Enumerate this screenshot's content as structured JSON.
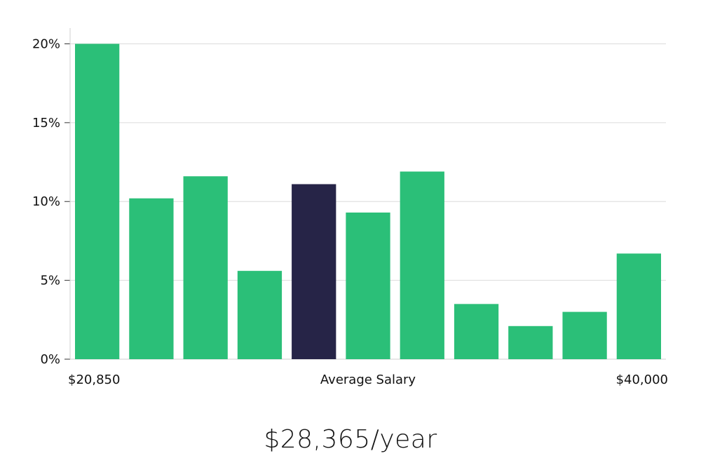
{
  "chart_data": {
    "type": "bar",
    "title": "",
    "xlabel": "Average Salary",
    "ylabel": "",
    "ylim": [
      0,
      21
    ],
    "y_ticks": [
      0,
      5,
      10,
      15,
      20
    ],
    "y_tick_labels": [
      "0%",
      "5%",
      "10%",
      "15%",
      "20%"
    ],
    "x_tick_labels": {
      "left": "$20,850",
      "center": "Average Salary",
      "right": "$40,000"
    },
    "values": [
      20.0,
      10.2,
      11.6,
      5.6,
      11.1,
      9.3,
      11.9,
      3.5,
      2.1,
      3.0,
      6.7
    ],
    "highlight_index": 4,
    "grid": true
  },
  "colors": {
    "bar": "#2bbf78",
    "highlight": "#262447",
    "grid": "#dcdcdc",
    "axis": "#cfcfcf"
  },
  "headline": "$28,365/year"
}
